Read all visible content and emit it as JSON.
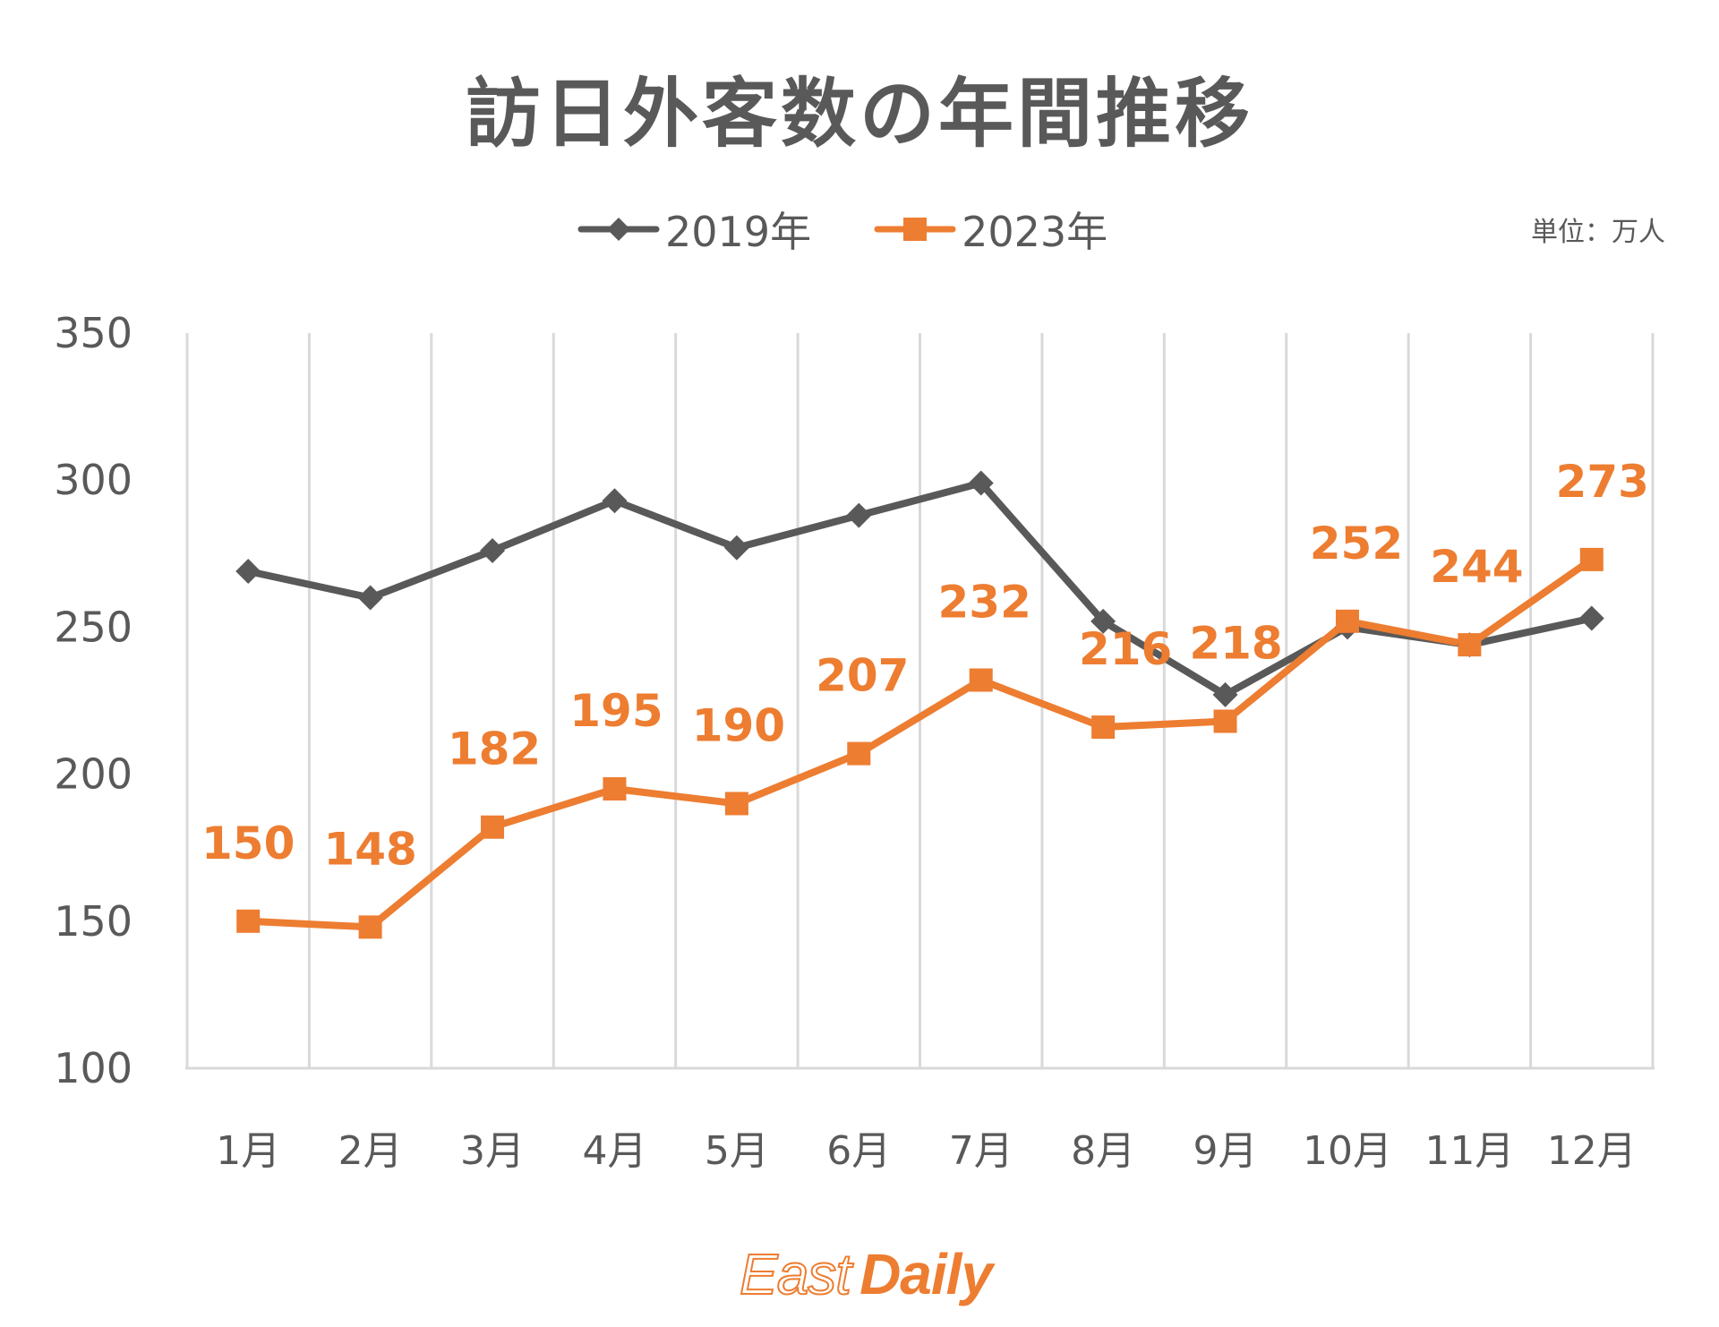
{
  "header": {
    "title": "訪日外客数の年間推移",
    "unit": "単位：万人"
  },
  "logo": {
    "part1": "East",
    "part2": "Daily"
  },
  "colors": {
    "series2019": "#595959",
    "series2023": "#ED7D31",
    "grid": "#D9D9D9",
    "text": "#595959"
  },
  "chart_data": {
    "type": "line",
    "title": "訪日外客数の年間推移",
    "xlabel": "",
    "ylabel": "",
    "unit": "単位：万人",
    "categories": [
      "1月",
      "2月",
      "3月",
      "4月",
      "5月",
      "6月",
      "7月",
      "8月",
      "9月",
      "10月",
      "11月",
      "12月"
    ],
    "ylim": [
      100,
      350
    ],
    "yticks": [
      "100",
      "150",
      "200",
      "250",
      "300",
      "350"
    ],
    "ytick_values": [
      100,
      150,
      200,
      250,
      300,
      350
    ],
    "grid": "vertical",
    "legend_position": "top-center",
    "series": [
      {
        "name": "2019年",
        "marker": "diamond",
        "color": "#595959",
        "values": [
          269,
          260,
          276,
          293,
          277,
          288,
          299,
          252,
          227,
          250,
          244,
          253
        ],
        "show_labels": false
      },
      {
        "name": "2023年",
        "marker": "square",
        "color": "#ED7D31",
        "values": [
          150,
          148,
          182,
          195,
          190,
          207,
          232,
          216,
          218,
          252,
          244,
          273
        ],
        "labels": [
          "150",
          "148",
          "182",
          "195",
          "190",
          "207",
          "232",
          "216",
          "218",
          "252",
          "244",
          "273"
        ],
        "show_labels": true
      }
    ]
  }
}
